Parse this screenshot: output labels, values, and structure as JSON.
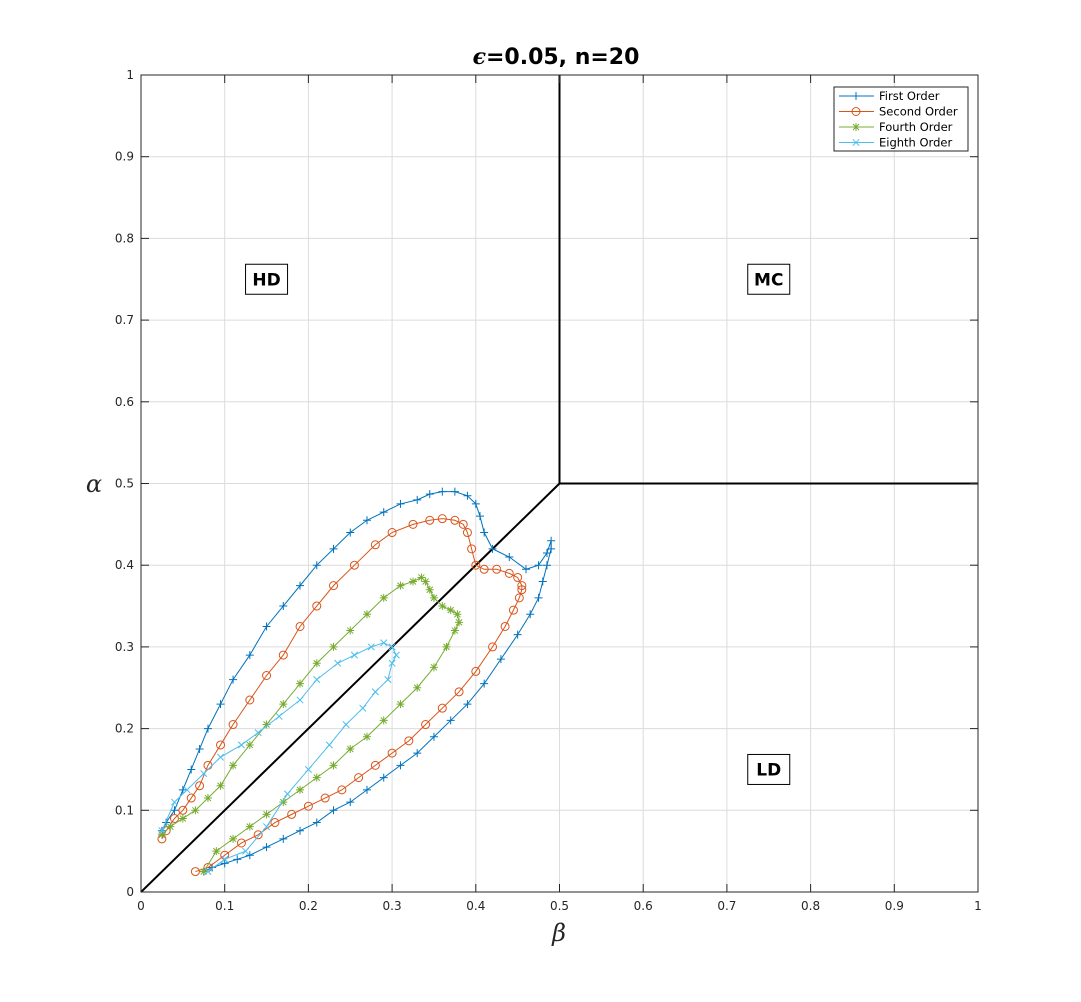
{
  "chart_data": {
    "type": "line",
    "title": "=0.05, n=20",
    "title_prefix_symbol": "ϵ",
    "xlabel": "β",
    "ylabel": "α",
    "xlim": [
      0,
      1
    ],
    "ylim": [
      0,
      1
    ],
    "xticks": [
      "0",
      "0.1",
      "0.2",
      "0.3",
      "0.4",
      "0.5",
      "0.6",
      "0.7",
      "0.8",
      "0.9",
      "1"
    ],
    "yticks": [
      "0",
      "0.1",
      "0.2",
      "0.3",
      "0.4",
      "0.5",
      "0.6",
      "0.7",
      "0.8",
      "0.9",
      "1"
    ],
    "grid": true,
    "legend_position": "top-right",
    "regions": [
      {
        "label": "HD",
        "x": 0.15,
        "y": 0.75
      },
      {
        "label": "MC",
        "x": 0.75,
        "y": 0.75
      },
      {
        "label": "LD",
        "x": 0.75,
        "y": 0.15
      }
    ],
    "boundaries": [
      {
        "x": [
          0,
          0.5
        ],
        "y": [
          0,
          0.5
        ]
      },
      {
        "x": [
          0.5,
          0.5
        ],
        "y": [
          0.5,
          1
        ]
      },
      {
        "x": [
          0.5,
          1
        ],
        "y": [
          0.5,
          0.5
        ]
      }
    ],
    "series": [
      {
        "name": "First Order",
        "color": "#0072BD",
        "marker": "plus",
        "x": [
          0.075,
          0.085,
          0.1,
          0.115,
          0.13,
          0.15,
          0.17,
          0.19,
          0.21,
          0.23,
          0.25,
          0.27,
          0.29,
          0.31,
          0.33,
          0.35,
          0.37,
          0.39,
          0.41,
          0.43,
          0.45,
          0.465,
          0.475,
          0.48,
          0.485,
          0.49,
          0.49,
          0.485,
          0.475,
          0.46,
          0.44,
          0.42,
          0.41,
          0.405,
          0.4,
          0.39,
          0.375,
          0.36,
          0.345,
          0.33,
          0.31,
          0.29,
          0.27,
          0.25,
          0.23,
          0.21,
          0.19,
          0.17,
          0.15,
          0.13,
          0.11,
          0.095,
          0.08,
          0.07,
          0.06,
          0.05,
          0.04,
          0.03,
          0.025
        ],
        "y": [
          0.025,
          0.03,
          0.035,
          0.04,
          0.045,
          0.055,
          0.065,
          0.075,
          0.085,
          0.1,
          0.11,
          0.125,
          0.14,
          0.155,
          0.17,
          0.19,
          0.21,
          0.23,
          0.255,
          0.285,
          0.315,
          0.34,
          0.36,
          0.38,
          0.4,
          0.42,
          0.43,
          0.415,
          0.4,
          0.395,
          0.41,
          0.42,
          0.44,
          0.46,
          0.475,
          0.485,
          0.49,
          0.49,
          0.487,
          0.48,
          0.475,
          0.465,
          0.455,
          0.44,
          0.42,
          0.4,
          0.375,
          0.35,
          0.325,
          0.29,
          0.26,
          0.23,
          0.2,
          0.175,
          0.15,
          0.125,
          0.1,
          0.085,
          0.075
        ]
      },
      {
        "name": "Second Order",
        "color": "#D95319",
        "marker": "circle",
        "x": [
          0.065,
          0.08,
          0.1,
          0.12,
          0.14,
          0.16,
          0.18,
          0.2,
          0.22,
          0.24,
          0.26,
          0.28,
          0.3,
          0.32,
          0.34,
          0.36,
          0.38,
          0.4,
          0.42,
          0.435,
          0.445,
          0.452,
          0.455,
          0.455,
          0.45,
          0.44,
          0.425,
          0.41,
          0.4,
          0.395,
          0.39,
          0.385,
          0.375,
          0.36,
          0.345,
          0.325,
          0.3,
          0.28,
          0.255,
          0.23,
          0.21,
          0.19,
          0.17,
          0.15,
          0.13,
          0.11,
          0.095,
          0.08,
          0.07,
          0.06,
          0.05,
          0.04,
          0.03,
          0.025
        ],
        "y": [
          0.025,
          0.03,
          0.045,
          0.06,
          0.07,
          0.085,
          0.095,
          0.105,
          0.115,
          0.125,
          0.14,
          0.155,
          0.17,
          0.185,
          0.205,
          0.225,
          0.245,
          0.27,
          0.3,
          0.325,
          0.345,
          0.36,
          0.37,
          0.375,
          0.385,
          0.39,
          0.395,
          0.395,
          0.4,
          0.42,
          0.44,
          0.45,
          0.455,
          0.457,
          0.455,
          0.45,
          0.44,
          0.425,
          0.4,
          0.375,
          0.35,
          0.325,
          0.29,
          0.265,
          0.235,
          0.205,
          0.18,
          0.155,
          0.13,
          0.115,
          0.1,
          0.09,
          0.075,
          0.065
        ]
      },
      {
        "name": "Fourth Order",
        "color": "#77AC30",
        "marker": "asterisk",
        "x": [
          0.075,
          0.09,
          0.11,
          0.13,
          0.15,
          0.17,
          0.19,
          0.21,
          0.23,
          0.25,
          0.27,
          0.29,
          0.31,
          0.33,
          0.35,
          0.365,
          0.375,
          0.38,
          0.378,
          0.37,
          0.36,
          0.35,
          0.345,
          0.34,
          0.335,
          0.325,
          0.31,
          0.29,
          0.27,
          0.25,
          0.23,
          0.21,
          0.19,
          0.17,
          0.15,
          0.13,
          0.11,
          0.095,
          0.08,
          0.065,
          0.05,
          0.035,
          0.025
        ],
        "y": [
          0.025,
          0.05,
          0.065,
          0.08,
          0.095,
          0.11,
          0.125,
          0.14,
          0.155,
          0.175,
          0.19,
          0.21,
          0.23,
          0.25,
          0.275,
          0.3,
          0.32,
          0.33,
          0.34,
          0.345,
          0.35,
          0.36,
          0.37,
          0.38,
          0.385,
          0.38,
          0.375,
          0.36,
          0.34,
          0.32,
          0.3,
          0.28,
          0.255,
          0.23,
          0.205,
          0.18,
          0.155,
          0.13,
          0.115,
          0.1,
          0.09,
          0.08,
          0.07
        ]
      },
      {
        "name": "Eighth Order",
        "color": "#4DBEEE",
        "marker": "x",
        "x": [
          0.08,
          0.1,
          0.125,
          0.15,
          0.175,
          0.2,
          0.225,
          0.245,
          0.265,
          0.28,
          0.295,
          0.3,
          0.305,
          0.3,
          0.29,
          0.275,
          0.255,
          0.235,
          0.21,
          0.19,
          0.165,
          0.14,
          0.12,
          0.095,
          0.075,
          0.055,
          0.04,
          0.025
        ],
        "y": [
          0.025,
          0.04,
          0.05,
          0.08,
          0.12,
          0.15,
          0.18,
          0.205,
          0.225,
          0.245,
          0.26,
          0.28,
          0.29,
          0.3,
          0.305,
          0.3,
          0.29,
          0.28,
          0.26,
          0.235,
          0.215,
          0.195,
          0.18,
          0.165,
          0.145,
          0.125,
          0.11,
          0.075
        ]
      }
    ]
  }
}
